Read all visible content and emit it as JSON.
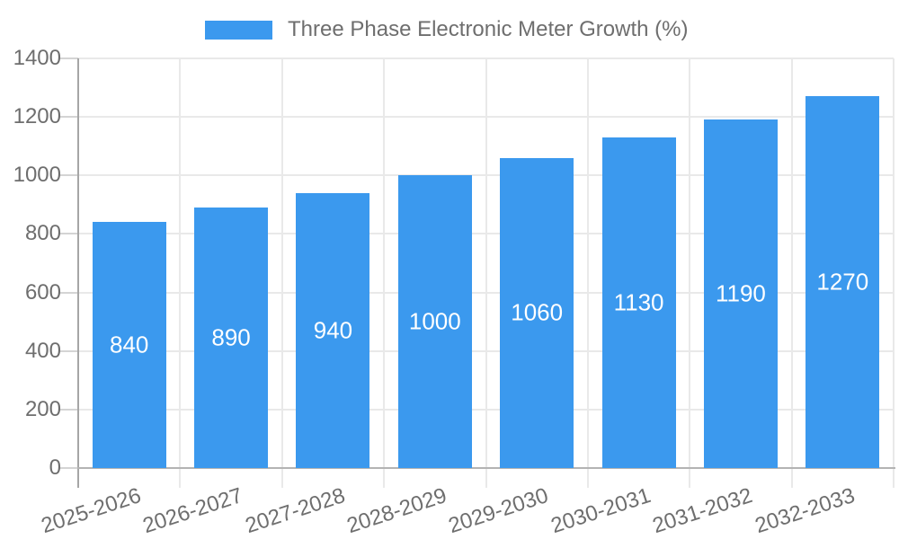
{
  "chart_data": {
    "type": "bar",
    "title": "Three Phase Electronic Meter Growth (%)",
    "categories": [
      "2025-2026",
      "2026-2027",
      "2027-2028",
      "2028-2029",
      "2029-2030",
      "2030-2031",
      "2031-2032",
      "2032-2033"
    ],
    "values": [
      840,
      890,
      940,
      1000,
      1060,
      1130,
      1190,
      1270
    ],
    "xlabel": "",
    "ylabel": "",
    "ylim": [
      0,
      1400
    ],
    "yticks": [
      0,
      200,
      400,
      600,
      800,
      1000,
      1200,
      1400
    ],
    "grid": true,
    "legend_position": "top",
    "bar_value_labels_visible": true,
    "x_label_rotation_deg": -18,
    "colors": {
      "bar": "#3b99ee",
      "bar_label_text": "#ffffff",
      "axis_text": "#6e6e6e",
      "grid_line": "#e9e9e9",
      "tick_line": "#d4d4d4",
      "x_axis_line": "#b3b3b3",
      "y_axis_line": "#a6a6a6",
      "background": "#ffffff"
    }
  }
}
